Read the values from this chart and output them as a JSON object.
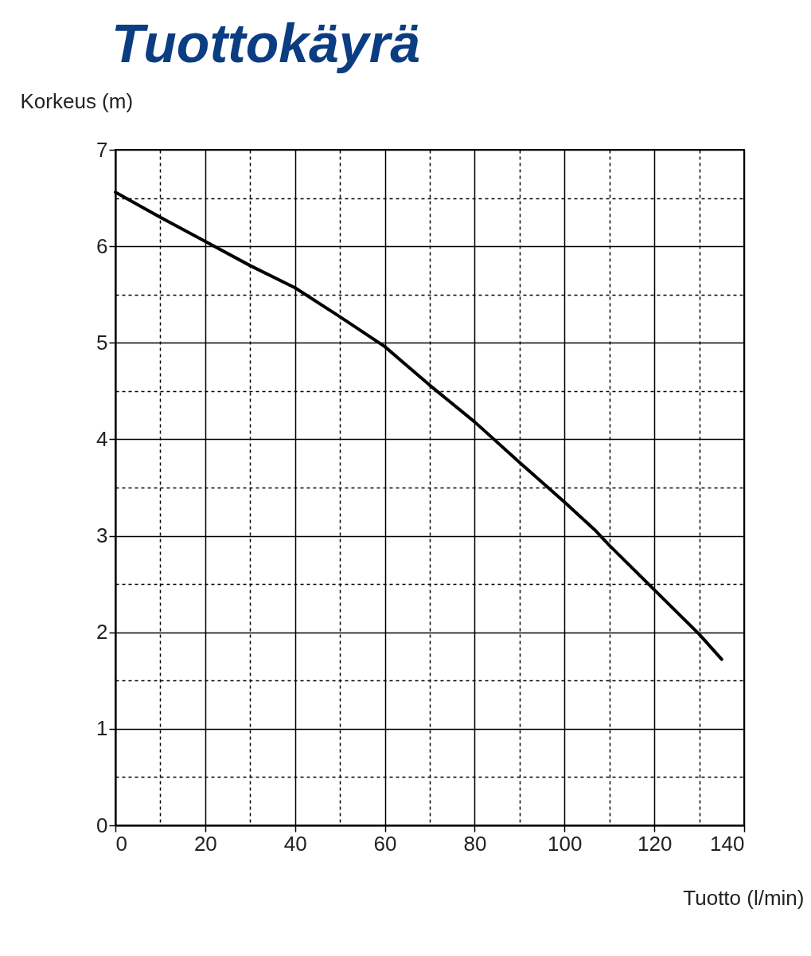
{
  "chart_data": {
    "type": "line",
    "title": "Tuottokäyrä",
    "xlabel": "Tuotto (l/min)",
    "ylabel": "Korkeus (m)",
    "x": [
      0,
      10,
      20,
      30,
      40,
      50,
      60,
      70,
      80,
      90,
      100,
      107,
      110,
      120,
      130,
      135
    ],
    "series": [
      {
        "color": "#000000",
        "values": [
          6.56,
          6.3,
          6.05,
          5.8,
          5.57,
          5.27,
          4.96,
          4.56,
          4.18,
          3.76,
          3.35,
          3.05,
          2.9,
          2.44,
          1.98,
          1.72
        ]
      }
    ],
    "xlim": [
      0,
      140
    ],
    "ylim": [
      0,
      7
    ],
    "xticks": [
      0,
      {
        "value": 10,
        "label": null
      },
      20,
      {
        "value": 30,
        "label": null
      },
      40,
      {
        "value": 50,
        "label": null
      },
      60,
      {
        "value": 70,
        "label": null
      },
      80,
      {
        "value": 90,
        "label": null
      },
      100,
      {
        "value": 110,
        "label": null
      },
      120,
      {
        "value": 130,
        "label": null
      },
      140
    ],
    "yticks": [
      0,
      {
        "value": 0.5,
        "label": null
      },
      1,
      {
        "value": 1.5,
        "label": null
      },
      2,
      {
        "value": 2.5,
        "label": null
      },
      3,
      {
        "value": 3.5,
        "label": null
      },
      4,
      {
        "value": 4.5,
        "label": null
      },
      5,
      {
        "value": 5.5,
        "label": null
      },
      6,
      {
        "value": 6.5,
        "label": null
      },
      7
    ],
    "grid": true,
    "marker": "none",
    "line_style": "solid"
  }
}
